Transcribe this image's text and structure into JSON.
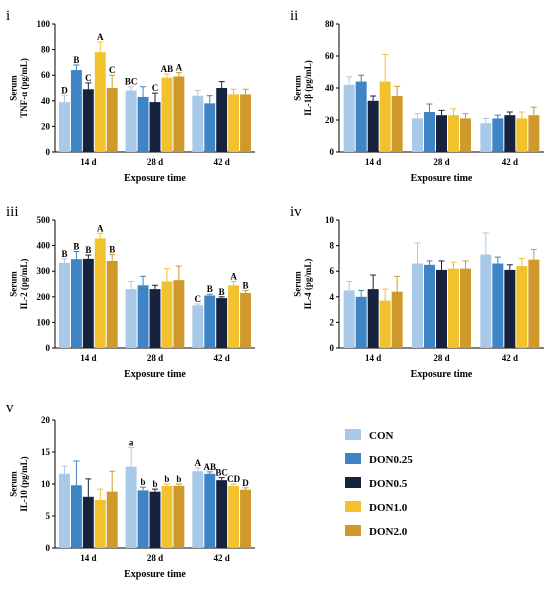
{
  "colors": {
    "CON": "#a9c9e8",
    "DON0.25": "#3f84c4",
    "DON0.5": "#17223f",
    "DON1.0": "#f2c12e",
    "DON2.0": "#cf9a2b",
    "error_cap": "#a9c9e8"
  },
  "legend": [
    "CON",
    "DON0.25",
    "DON0.5",
    "DON1.0",
    "DON2.0"
  ],
  "chart_data": [
    {
      "id": "i",
      "panel_label": "i",
      "type": "bar",
      "categories": [
        "14 d",
        "28 d",
        "42 d"
      ],
      "xlabel": "Exposure time",
      "ylabel_line1": "Serum",
      "ylabel_line2": "TNF-α (pg/mL)",
      "ylim": [
        0,
        100
      ],
      "yticks": [
        0,
        20,
        40,
        60,
        80,
        100
      ],
      "series": [
        {
          "name": "CON",
          "values": [
            39,
            48,
            44
          ],
          "errors": [
            5,
            3,
            4
          ],
          "letters": [
            "D",
            "BC",
            ""
          ]
        },
        {
          "name": "DON0.25",
          "values": [
            64,
            43,
            38
          ],
          "errors": [
            4,
            8,
            6
          ],
          "letters": [
            "B",
            "",
            ""
          ]
        },
        {
          "name": "DON0.5",
          "values": [
            49,
            39,
            50
          ],
          "errors": [
            5,
            7,
            5
          ],
          "letters": [
            "C",
            "C",
            ""
          ]
        },
        {
          "name": "DON1.0",
          "values": [
            78,
            58,
            45
          ],
          "errors": [
            8,
            3,
            4
          ],
          "letters": [
            "A",
            "AB",
            ""
          ]
        },
        {
          "name": "DON2.0",
          "values": [
            50,
            59,
            45
          ],
          "errors": [
            10,
            3,
            4
          ],
          "letters": [
            "C",
            "A",
            ""
          ]
        }
      ]
    },
    {
      "id": "ii",
      "panel_label": "ii",
      "type": "bar",
      "categories": [
        "14 d",
        "28 d",
        "42 d"
      ],
      "xlabel": "Exposure time",
      "ylabel_line1": "Serum",
      "ylabel_line2": "IL-1β (pg/mL)",
      "ylim": [
        0,
        80
      ],
      "yticks": [
        0,
        20,
        40,
        60,
        80
      ],
      "series": [
        {
          "name": "CON",
          "values": [
            42,
            21,
            18
          ],
          "errors": [
            5,
            3,
            3
          ],
          "letters": [
            "",
            "",
            ""
          ]
        },
        {
          "name": "DON0.25",
          "values": [
            44,
            25,
            21
          ],
          "errors": [
            4,
            5,
            2
          ],
          "letters": [
            "",
            "",
            ""
          ]
        },
        {
          "name": "DON0.5",
          "values": [
            32,
            23,
            23
          ],
          "errors": [
            3,
            3,
            2
          ],
          "letters": [
            "",
            "",
            ""
          ]
        },
        {
          "name": "DON1.0",
          "values": [
            44,
            23,
            21
          ],
          "errors": [
            17,
            4,
            4
          ],
          "letters": [
            "",
            "",
            ""
          ]
        },
        {
          "name": "DON2.0",
          "values": [
            35,
            21,
            23
          ],
          "errors": [
            6,
            3,
            5
          ],
          "letters": [
            "",
            "",
            ""
          ]
        }
      ]
    },
    {
      "id": "iii",
      "panel_label": "iii",
      "type": "bar",
      "categories": [
        "14 d",
        "28 d",
        "42 d"
      ],
      "xlabel": "Exposure time",
      "ylabel_line1": "Serum",
      "ylabel_line2": "IL-2 (pg/mL)",
      "ylim": [
        0,
        500
      ],
      "yticks": [
        0,
        100,
        200,
        300,
        400,
        500
      ],
      "series": [
        {
          "name": "CON",
          "values": [
            333,
            230,
            167
          ],
          "errors": [
            15,
            30,
            5
          ],
          "letters": [
            "B",
            "",
            "C"
          ]
        },
        {
          "name": "DON0.25",
          "values": [
            347,
            245,
            205
          ],
          "errors": [
            30,
            35,
            5
          ],
          "letters": [
            "B",
            "",
            "B"
          ]
        },
        {
          "name": "DON0.5",
          "values": [
            348,
            230,
            195
          ],
          "errors": [
            15,
            15,
            5
          ],
          "letters": [
            "B",
            "",
            "B"
          ]
        },
        {
          "name": "DON1.0",
          "values": [
            428,
            260,
            245
          ],
          "errors": [
            20,
            50,
            15
          ],
          "letters": [
            "A",
            "",
            "A"
          ]
        },
        {
          "name": "DON2.0",
          "values": [
            340,
            265,
            215
          ],
          "errors": [
            25,
            55,
            10
          ],
          "letters": [
            "B",
            "",
            "B"
          ]
        }
      ]
    },
    {
      "id": "iv",
      "panel_label": "iv",
      "type": "bar",
      "categories": [
        "14 d",
        "28 d",
        "42 d"
      ],
      "xlabel": "Exposure time",
      "ylabel_line1": "Serum",
      "ylabel_line2": "IL-4 (pg/mL)",
      "ylim": [
        0,
        10
      ],
      "yticks": [
        0,
        2,
        4,
        6,
        8,
        10
      ],
      "series": [
        {
          "name": "CON",
          "values": [
            4.5,
            6.6,
            7.3
          ],
          "errors": [
            0.7,
            1.6,
            1.7
          ],
          "letters": [
            "",
            "",
            ""
          ]
        },
        {
          "name": "DON0.25",
          "values": [
            4.0,
            6.5,
            6.6
          ],
          "errors": [
            0.5,
            0.3,
            0.5
          ],
          "letters": [
            "",
            "",
            ""
          ]
        },
        {
          "name": "DON0.5",
          "values": [
            4.6,
            6.1,
            6.1
          ],
          "errors": [
            1.1,
            0.7,
            0.4
          ],
          "letters": [
            "",
            "",
            ""
          ]
        },
        {
          "name": "DON1.0",
          "values": [
            3.7,
            6.2,
            6.4
          ],
          "errors": [
            0.9,
            0.5,
            0.6
          ],
          "letters": [
            "",
            "",
            ""
          ]
        },
        {
          "name": "DON2.0",
          "values": [
            4.4,
            6.2,
            6.9
          ],
          "errors": [
            1.2,
            0.6,
            0.8
          ],
          "letters": [
            "",
            "",
            ""
          ]
        }
      ]
    },
    {
      "id": "v",
      "panel_label": "v",
      "type": "bar",
      "categories": [
        "14 d",
        "28 d",
        "42 d"
      ],
      "xlabel": "Exposure time",
      "ylabel_line1": "Serum",
      "ylabel_line2": "IL-10 (pg/mL)",
      "ylim": [
        0,
        20
      ],
      "yticks": [
        0,
        5,
        10,
        15,
        20
      ],
      "series": [
        {
          "name": "CON",
          "values": [
            11.6,
            12.7,
            12.0
          ],
          "errors": [
            1.2,
            3.0,
            0.5
          ],
          "letters": [
            "",
            "a",
            "A"
          ]
        },
        {
          "name": "DON0.25",
          "values": [
            9.8,
            9.0,
            11.6
          ],
          "errors": [
            3.8,
            0.5,
            0.3
          ],
          "letters": [
            "",
            "b",
            "AB"
          ]
        },
        {
          "name": "DON0.5",
          "values": [
            8.0,
            8.8,
            10.6
          ],
          "errors": [
            2.8,
            0.4,
            0.4
          ],
          "letters": [
            "",
            "b",
            "BC"
          ]
        },
        {
          "name": "DON1.0",
          "values": [
            7.5,
            9.7,
            9.7
          ],
          "errors": [
            1.7,
            0.3,
            0.3
          ],
          "letters": [
            "",
            "b",
            "CD"
          ]
        },
        {
          "name": "DON2.0",
          "values": [
            8.8,
            9.7,
            9.1
          ],
          "errors": [
            3.2,
            0.3,
            0.3
          ],
          "letters": [
            "",
            "b",
            "D"
          ]
        }
      ]
    }
  ]
}
